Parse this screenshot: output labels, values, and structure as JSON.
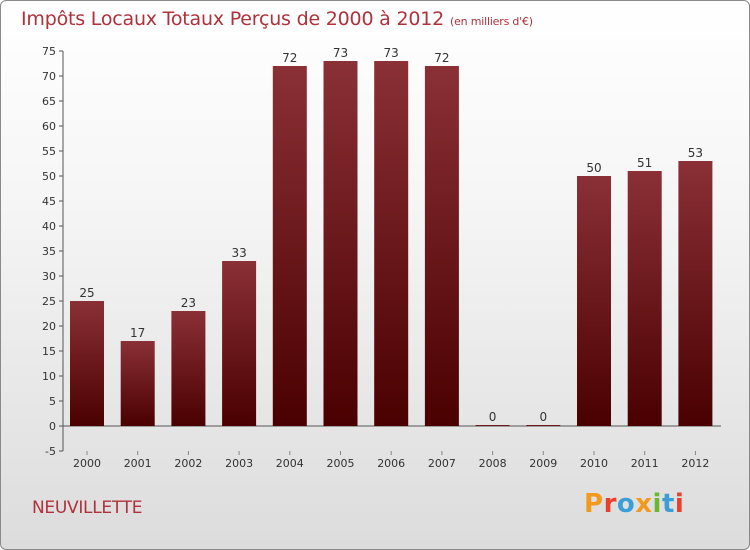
{
  "header": {
    "title": "Impôts Locaux Totaux Perçus de 2000 à 2012",
    "subtitle": "(en milliers d'€)"
  },
  "footer": {
    "commune": "NEUVILLETTE",
    "brand": "Proxiti",
    "brand_colors": [
      "#f29a1e",
      "#e8402c",
      "#3a9fd8",
      "#f29a1e",
      "#6ab82f",
      "#3a9fd8",
      "#e8402c"
    ]
  },
  "colors": {
    "bar_top": "#8a3036",
    "bar_bottom": "#4a0000",
    "title": "#b0313a"
  },
  "chart_data": {
    "type": "bar",
    "title": "Impôts Locaux Totaux Perçus de 2000 à 2012",
    "subtitle": "(en milliers d'€)",
    "categories": [
      "2000",
      "2001",
      "2002",
      "2003",
      "2004",
      "2005",
      "2006",
      "2007",
      "2008",
      "2009",
      "2010",
      "2011",
      "2012"
    ],
    "values": [
      25,
      17,
      23,
      33,
      72,
      73,
      73,
      72,
      0,
      0,
      50,
      51,
      53
    ],
    "ylim": [
      -5,
      75
    ],
    "yticks": [
      -5,
      0,
      5,
      10,
      15,
      20,
      25,
      30,
      35,
      40,
      45,
      50,
      55,
      60,
      65,
      70,
      75
    ],
    "xlabel": "",
    "ylabel": "",
    "grid": false
  }
}
